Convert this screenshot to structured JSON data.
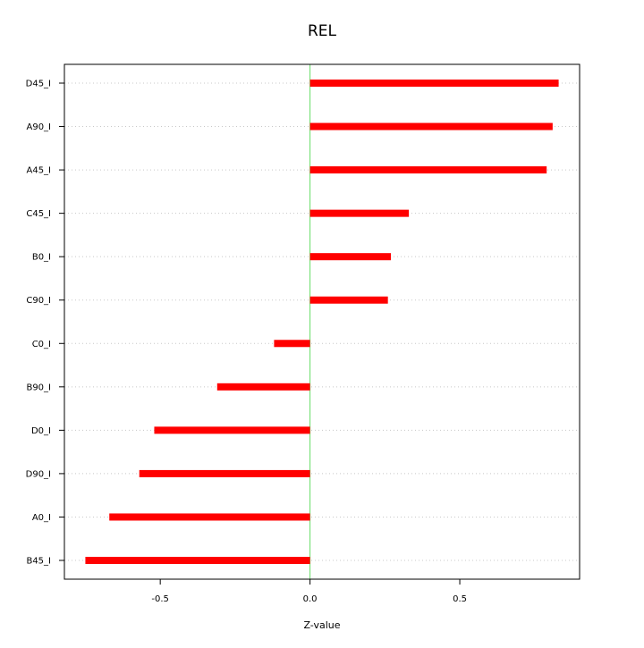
{
  "chart_data": {
    "type": "bar",
    "orientation": "horizontal",
    "title": "REL",
    "xlabel": "Z-value",
    "ylabel": "",
    "xlim": [
      -0.82,
      0.9
    ],
    "x_ticks": [
      -0.5,
      0.0,
      0.5
    ],
    "x_tick_labels": [
      "-0.5",
      "0.0",
      "0.5"
    ],
    "reference_line": 0.0,
    "grid": "horizontal dotted",
    "categories": [
      "D45_I",
      "A90_I",
      "A45_I",
      "C45_I",
      "B0_I",
      "C90_I",
      "C0_I",
      "B90_I",
      "D0_I",
      "D90_I",
      "A0_I",
      "B45_I"
    ],
    "values": [
      0.83,
      0.81,
      0.79,
      0.33,
      0.27,
      0.26,
      -0.12,
      -0.31,
      -0.52,
      -0.57,
      -0.67,
      -0.75
    ],
    "colors": {
      "bar": "#ff0000",
      "reference_line": "#66dd66",
      "grid": "#c8c8c8",
      "axis": "#000000"
    }
  }
}
